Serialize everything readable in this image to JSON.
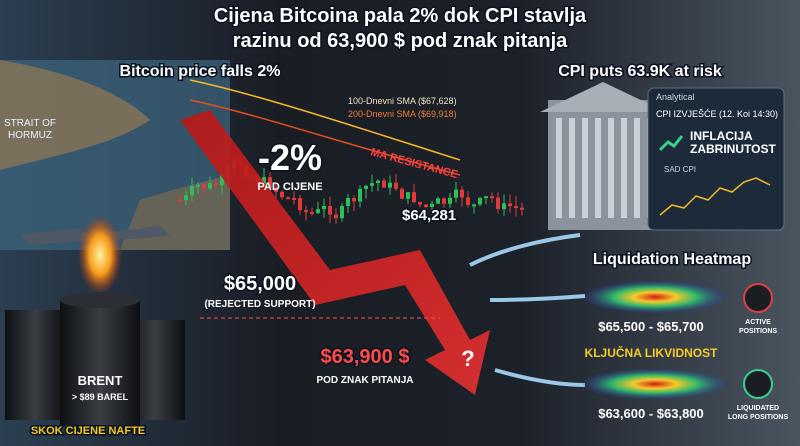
{
  "title_lines": [
    "Cijena Bitcoina pala 2% dok CPI stavlja",
    "razinu od 63,900 $ pod znak pitanja"
  ],
  "left_subtitle": "Bitcoin price falls 2%",
  "right_subtitle": "CPI puts 63.9K at risk",
  "map_label": [
    "STRAIT OF",
    "HORMUZ"
  ],
  "sma": {
    "sma100": "100-Dnevni SMA ($67,628)",
    "sma200": "200-Dnevni SMA ($69,918)",
    "resistance": "MA RESISTANCE"
  },
  "drop": {
    "percent": "-2%",
    "caption": "PAD CIJENE"
  },
  "price_high": "$64,281",
  "support": {
    "price": "$65,000",
    "caption": "(REJECTED SUPPORT)"
  },
  "target": {
    "price": "$63,900 $",
    "caption": "POD ZNAK PITANJA",
    "mark": "?"
  },
  "oil": {
    "name": "BRENT",
    "price": "> $89 BAREL",
    "caption": "SKOK CIJENE NAFTE"
  },
  "panel": {
    "header": "Analytical",
    "report": "CPI IZVJEŠĆE (12. Koi 14:30)",
    "headline": [
      "INFLACIJA",
      "ZABRINUTOST"
    ],
    "chart_label": "SAD CPI"
  },
  "heatmap": {
    "title": "Liquidation Heatmap",
    "zones": [
      {
        "range": "$65,500 - $65,700",
        "status": [
          "ACTIVE",
          "POSITIONS"
        ]
      },
      {
        "range": "$63,600 - $63,800",
        "status": [
          "LIQUIDATED",
          "LONG POSITIONS"
        ]
      }
    ],
    "key": "KLJUČNA LIKVIDNOST"
  }
}
